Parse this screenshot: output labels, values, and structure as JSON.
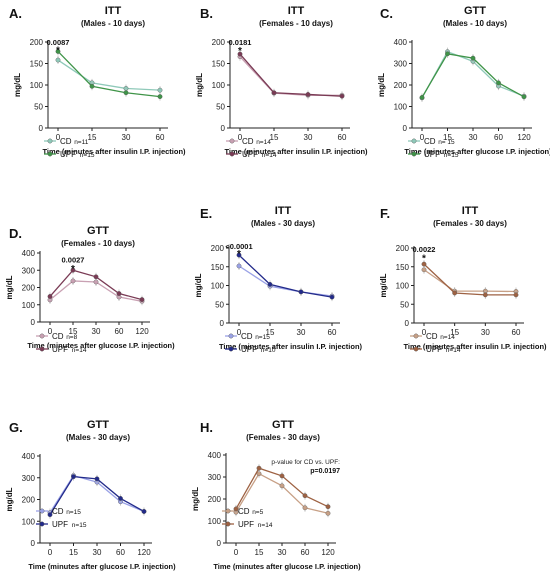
{
  "chart_data": [
    {
      "type": "line",
      "panel_label": "A.",
      "title": "ITT",
      "subtitle": "(Males - 10 days)",
      "ylabel": "mg/dL",
      "xlabel": "Time (minutes after insulin I.P. injection)",
      "x": [
        0,
        15,
        30,
        60
      ],
      "ylim": [
        0,
        200
      ],
      "yticks": [
        0,
        50,
        100,
        150,
        200
      ],
      "series": [
        {
          "name": "CD",
          "n_label": "n=11",
          "color": "#8fc9b9",
          "values": [
            158,
            105,
            92,
            88
          ]
        },
        {
          "name": "UPF",
          "n_label": "n=15",
          "color": "#3f9448",
          "values": [
            178,
            97,
            82,
            73
          ]
        }
      ],
      "annotations": [
        {
          "text": "0.0087",
          "x": 0,
          "y": 193
        },
        {
          "text": "*",
          "x": 0,
          "y": 185
        }
      ]
    },
    {
      "type": "line",
      "panel_label": "B.",
      "title": "ITT",
      "subtitle": "(Females - 10 days)",
      "ylabel": "mg/dL",
      "xlabel": "Time (minutes after insulin I.P. injection)",
      "x": [
        0,
        15,
        30,
        60
      ],
      "ylim": [
        0,
        200
      ],
      "yticks": [
        0,
        50,
        100,
        150,
        200
      ],
      "series": [
        {
          "name": "CD",
          "n_label": "n=14",
          "color": "#c9a1b3",
          "values": [
            166,
            81,
            76,
            76
          ]
        },
        {
          "name": "UPF",
          "n_label": "n=14",
          "color": "#7a3b55",
          "values": [
            172,
            82,
            78,
            74
          ]
        }
      ],
      "annotations": [
        {
          "text": "0.0181",
          "x": 0,
          "y": 193
        },
        {
          "text": "*",
          "x": 0,
          "y": 184
        }
      ]
    },
    {
      "type": "line",
      "panel_label": "C.",
      "title": "GTT",
      "subtitle": "(Males - 10 days)",
      "ylabel": "mg/dL",
      "xlabel": "Time (minutes after glucose I.P. injection)",
      "x": [
        0,
        15,
        30,
        60,
        120
      ],
      "ylim": [
        0,
        400
      ],
      "yticks": [
        0,
        100,
        200,
        300,
        400
      ],
      "series": [
        {
          "name": "CD",
          "n_label": "n= 15",
          "color": "#8fc9b9",
          "values": [
            140,
            355,
            310,
            195,
            148
          ]
        },
        {
          "name": "UPF",
          "n_label": "n=15",
          "color": "#3f9448",
          "values": [
            142,
            345,
            325,
            210,
            145
          ]
        }
      ],
      "annotations": []
    },
    {
      "type": "line",
      "panel_label": "D.",
      "title": "GTT",
      "subtitle": "(Females - 10 days)",
      "ylabel": "mg/dL",
      "xlabel": "Time (minutes after glucose I.P. injection)",
      "x": [
        0,
        15,
        30,
        60,
        120
      ],
      "ylim": [
        0,
        400
      ],
      "yticks": [
        0,
        100,
        200,
        300,
        400
      ],
      "series": [
        {
          "name": "CD",
          "n_label": "n=8",
          "color": "#c9a1b3",
          "values": [
            128,
            238,
            232,
            145,
            120
          ]
        },
        {
          "name": "UPF",
          "n_label": "n=14",
          "color": "#7a3b55",
          "values": [
            148,
            300,
            262,
            165,
            130
          ]
        }
      ],
      "annotations": [
        {
          "text": "0.0027",
          "x": 15,
          "y": 345
        },
        {
          "text": "*",
          "x": 15,
          "y": 320
        }
      ]
    },
    {
      "type": "line",
      "panel_label": "E.",
      "title": "ITT",
      "subtitle": "(Males - 30 days)",
      "ylabel": "mg/dL",
      "xlabel": "Time (minutes after insulin I.P. injection)",
      "x": [
        0,
        15,
        30,
        60
      ],
      "ylim": [
        0,
        200
      ],
      "yticks": [
        0,
        50,
        100,
        150,
        200
      ],
      "series": [
        {
          "name": "CD",
          "n_label": "n=15",
          "color": "#9aa2e6",
          "values": [
            152,
            98,
            83,
            72
          ]
        },
        {
          "name": "UPF",
          "n_label": "n=10",
          "color": "#222a8a",
          "values": [
            181,
            103,
            83,
            69
          ]
        }
      ],
      "annotations": [
        {
          "text": "<0.0001",
          "x": 0,
          "y": 197
        },
        {
          "text": "*",
          "x": 0,
          "y": 190
        }
      ]
    },
    {
      "type": "line",
      "panel_label": "F.",
      "title": "ITT",
      "subtitle": "(Females - 30 days)",
      "ylabel": "mg/dL",
      "xlabel": "Time (minutes after insulin I.P. injection)",
      "x": [
        0,
        15,
        30,
        60
      ],
      "ylim": [
        0,
        200
      ],
      "yticks": [
        0,
        50,
        100,
        150,
        200
      ],
      "series": [
        {
          "name": "CD",
          "n_label": "n=14",
          "color": "#c7a086",
          "values": [
            142,
            85,
            85,
            84
          ]
        },
        {
          "name": "UPF",
          "n_label": "n=14",
          "color": "#9e6243",
          "values": [
            157,
            80,
            75,
            75
          ]
        }
      ],
      "annotations": [
        {
          "text": "0.0022",
          "x": 0,
          "y": 190
        },
        {
          "text": "*",
          "x": 0,
          "y": 177
        }
      ]
    },
    {
      "type": "line",
      "panel_label": "G.",
      "title": "GTT",
      "subtitle": "(Males - 30 days)",
      "ylabel": "mg/dL",
      "xlabel": "Time (minutes after glucose I.P. injection)",
      "x": [
        0,
        15,
        30,
        60,
        120
      ],
      "ylim": [
        0,
        400
      ],
      "yticks": [
        0,
        100,
        200,
        300,
        400
      ],
      "series": [
        {
          "name": "CD",
          "n_label": "n=15",
          "color": "#9aa2e6",
          "values": [
            140,
            310,
            280,
            190,
            145
          ]
        },
        {
          "name": "UPF",
          "n_label": "n=15",
          "color": "#222a8a",
          "values": [
            130,
            305,
            295,
            205,
            145
          ]
        }
      ],
      "annotations": []
    },
    {
      "type": "line",
      "panel_label": "H.",
      "title": "GTT",
      "subtitle": "(Females - 30 days)",
      "ylabel": "mg/dL",
      "xlabel": "Time (minutes after glucose I.P. injection)",
      "x": [
        0,
        15,
        30,
        60,
        120
      ],
      "ylim": [
        0,
        400
      ],
      "yticks": [
        0,
        100,
        200,
        300,
        400
      ],
      "series": [
        {
          "name": "CD",
          "n_label": "n=5",
          "color": "#c7a086",
          "values": [
            140,
            315,
            260,
            160,
            135
          ]
        },
        {
          "name": "UPF",
          "n_label": "n=14",
          "color": "#9e6243",
          "values": [
            155,
            340,
            305,
            215,
            165
          ]
        }
      ],
      "annotations": [],
      "note": "p-value for CD vs. UPF:",
      "note_value": "p=0.0197"
    }
  ]
}
